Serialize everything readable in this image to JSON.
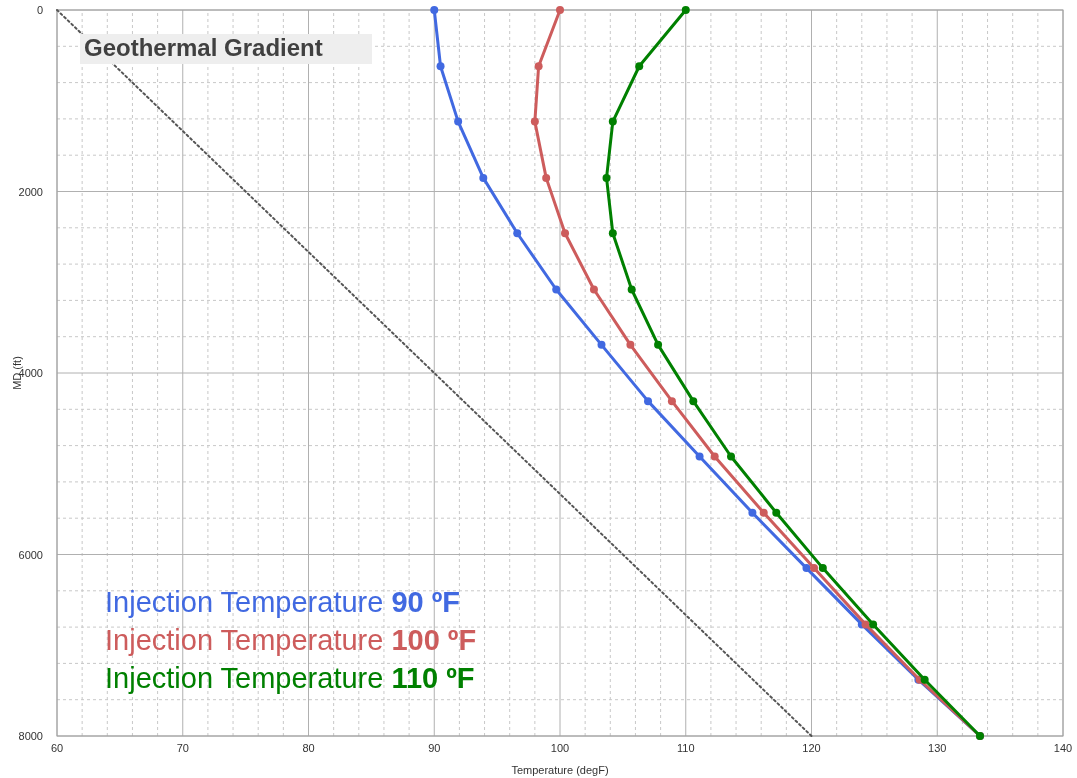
{
  "chart_data": {
    "type": "line",
    "xlabel": "Temperature (degF)",
    "ylabel": "MD (ft)",
    "annotations": [
      "Geothermal Gradient"
    ],
    "xlim": [
      60,
      140
    ],
    "xticks": [
      60,
      70,
      80,
      90,
      100,
      110,
      120,
      130,
      140
    ],
    "ylim": [
      8000,
      0
    ],
    "yticks": [
      0,
      2000,
      4000,
      6000,
      8000
    ],
    "grid": true,
    "legend": "bottom left",
    "marker": "circle",
    "line_style": "solid",
    "series": [
      {
        "color": "#555555",
        "marker": "none",
        "line_style": "dotted",
        "x": [
          60,
          120
        ],
        "values": [
          0,
          8000
        ]
      },
      {
        "name": "Injection Temperature 90 ºF",
        "color": "#4169e1",
        "x": [
          90,
          90.5,
          91.9,
          93.9,
          96.6,
          99.7,
          103.3,
          107.0,
          111.1,
          115.3,
          119.6,
          124.0,
          128.5,
          133.4
        ],
        "values": [
          0,
          620,
          1230,
          1850,
          2460,
          3080,
          3690,
          4310,
          4920,
          5540,
          6150,
          6770,
          7380,
          8000
        ]
      },
      {
        "name": "Injection Temperature 100 ºF",
        "color": "#cd5c5c",
        "x": [
          100,
          98.3,
          98.0,
          98.9,
          100.4,
          102.7,
          105.6,
          108.9,
          112.3,
          116.2,
          120.2,
          124.3,
          128.6,
          133.4
        ],
        "values": [
          0,
          620,
          1230,
          1850,
          2460,
          3080,
          3690,
          4310,
          4920,
          5540,
          6150,
          6770,
          7380,
          8000
        ]
      },
      {
        "name": "Injection Temperature 110 ºF",
        "color": "#008000",
        "x": [
          110,
          106.3,
          104.2,
          103.7,
          104.2,
          105.7,
          107.8,
          110.6,
          113.6,
          117.2,
          120.9,
          124.9,
          129.0,
          133.4
        ],
        "values": [
          0,
          620,
          1230,
          1850,
          2460,
          3080,
          3690,
          4310,
          4920,
          5540,
          6150,
          6770,
          7380,
          8000
        ]
      }
    ]
  }
}
